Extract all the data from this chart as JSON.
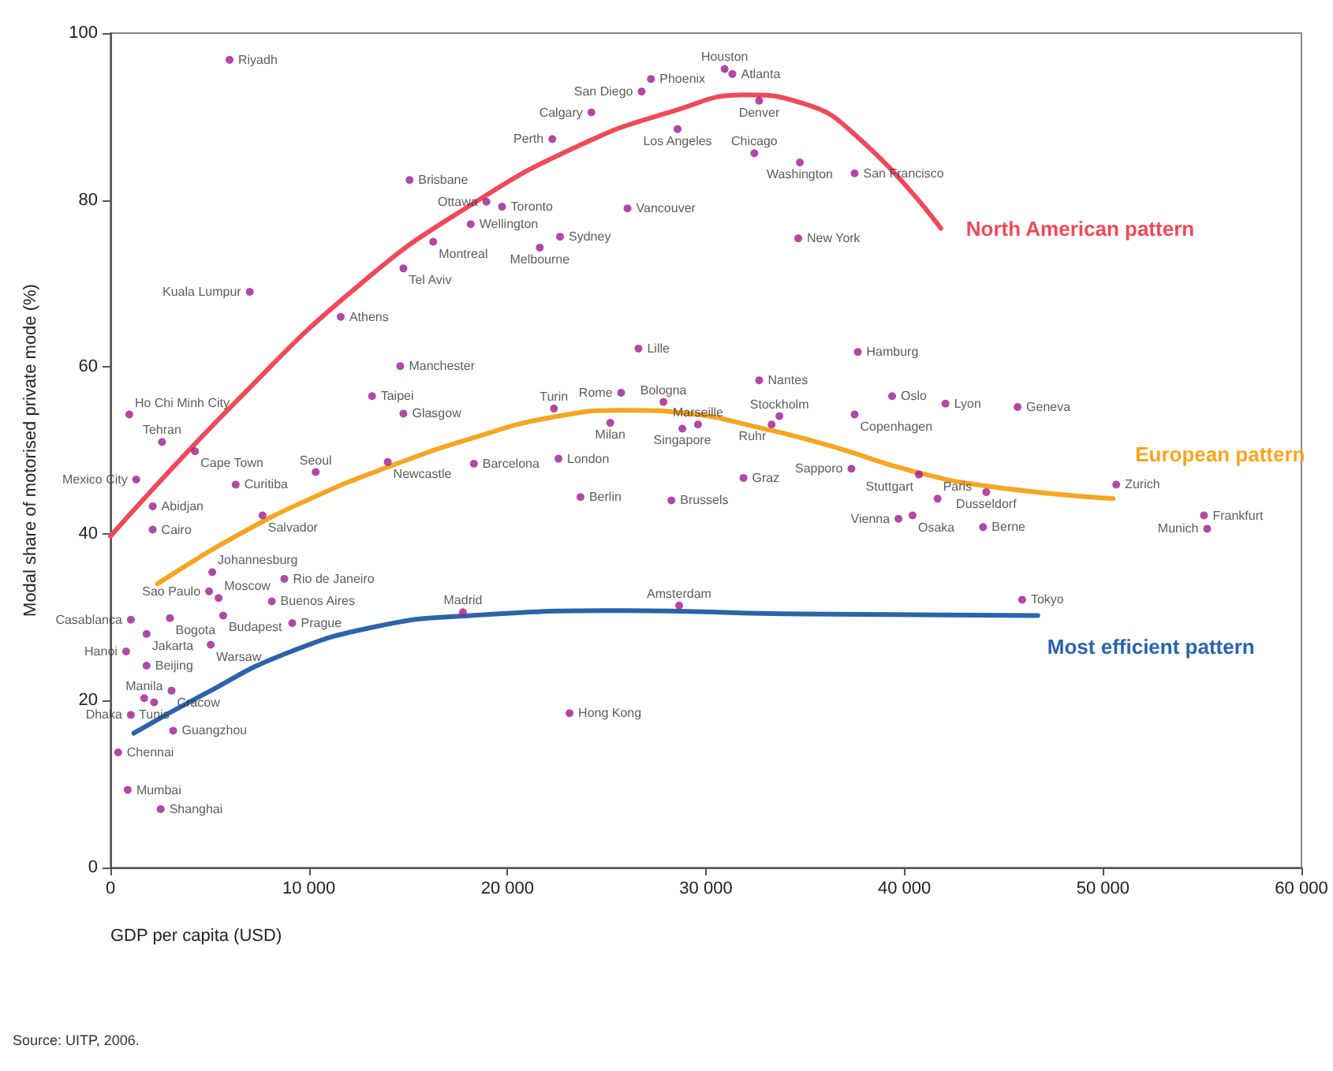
{
  "chart_data": {
    "type": "scatter",
    "xlabel": "GDP per capita (USD)",
    "ylabel": "Modal share of motorised private mode (%)",
    "xlim": [
      0,
      60000
    ],
    "xticks": [
      0,
      {
        "value": 10000,
        "label": "10 000"
      },
      {
        "value": 20000,
        "label": "20 000"
      },
      {
        "value": 30000,
        "label": "30 000"
      },
      {
        "value": 40000,
        "label": "40 000"
      },
      {
        "value": 50000,
        "label": "50 000"
      },
      {
        "value": 60000,
        "label": "60 000"
      }
    ],
    "ylim": [
      0,
      100
    ],
    "yticks": [
      0,
      20,
      40,
      60,
      80,
      100
    ],
    "annotations": [
      "Source: UITP, 2006."
    ],
    "series": [
      {
        "color": "#9b1c8c",
        "marker": "circle",
        "x": [
          6000,
          15070,
          18940,
          19730,
          18150,
          16260,
          14760,
          7020,
          11600,
          14600,
          13180,
          14760,
          950,
          2600,
          4260,
          1300,
          2130,
          2130,
          6310,
          10340,
          13970,
          18310,
          7660,
          5130,
          8760,
          4970,
          5450,
          8130,
          1030,
          3000,
          5680,
          9160,
          1820,
          790,
          5050,
          1820,
          1700,
          3080,
          2200,
          1030,
          3160,
          390,
          870,
          2530,
          17760,
          23130,
          28650,
          45930,
          50670,
          55090,
          55250,
          45700,
          44120,
          43960,
          42070,
          39380,
          37490,
          37650,
          33700,
          33310,
          32680,
          37330,
          40730,
          39700,
          40410,
          41670,
          31890,
          28260,
          23680,
          22570,
          26600,
          25730,
          22340,
          25180,
          27860,
          28810,
          29600,
          27230,
          26760,
          30940,
          31330,
          32680,
          24230,
          22260,
          28570,
          32440,
          34730,
          37490,
          26050,
          22650,
          21630,
          34650
        ],
        "values": [
          96.8,
          82.4,
          79.8,
          79.2,
          77.1,
          75.0,
          71.8,
          69.0,
          66.0,
          60.1,
          56.5,
          54.4,
          54.3,
          51.0,
          49.9,
          46.5,
          43.3,
          40.5,
          45.9,
          47.4,
          48.6,
          48.4,
          42.2,
          35.4,
          34.6,
          33.1,
          32.3,
          31.9,
          29.7,
          29.9,
          30.2,
          29.3,
          28.0,
          25.9,
          26.7,
          24.2,
          20.3,
          21.2,
          19.8,
          18.3,
          16.4,
          13.8,
          9.3,
          7.0,
          30.6,
          18.5,
          31.4,
          32.1,
          45.9,
          42.2,
          40.6,
          55.2,
          45.0,
          40.8,
          55.6,
          56.5,
          54.3,
          61.8,
          54.1,
          53.1,
          58.4,
          47.8,
          47.1,
          41.8,
          42.2,
          44.2,
          46.7,
          44.0,
          44.4,
          49.0,
          62.2,
          56.9,
          55.0,
          53.3,
          55.8,
          52.6,
          53.1,
          94.5,
          93.0,
          95.7,
          95.1,
          91.9,
          90.5,
          87.3,
          88.5,
          85.6,
          84.5,
          83.2,
          79.0,
          75.6,
          74.3,
          75.4
        ],
        "value_labels": [
          "Riyadh",
          "Brisbane",
          "Ottawa",
          "Toronto",
          "Wellington",
          "Montreal",
          "Tel Aviv",
          "Kuala Lumpur",
          "Athens",
          "Manchester",
          "Taipei",
          "Glasgow",
          "Ho Chi Minh City",
          "Tehran",
          "Cape Town",
          "Mexico City",
          "Abidjan",
          "Cairo",
          "Curitiba",
          "Seoul",
          "Newcastle",
          "Barcelona",
          "Salvador",
          "Johannesburg",
          "Rio de Janeiro",
          "Sao Paulo",
          "Moscow",
          "Buenos Aires",
          "Casablanca",
          "Bogota",
          "Budapest",
          "Prague",
          "Jakarta",
          "Hanoi",
          "Warsaw",
          "Beijing",
          "Manila",
          "Cracow",
          "Tunis",
          "Dhaka",
          "Guangzhou",
          "Chennai",
          "Mumbai",
          "Shanghai",
          "Madrid",
          "Hong Kong",
          "Amsterdam",
          "Tokyo",
          "Zurich",
          "Frankfurt",
          "Munich",
          "Geneva",
          "Dusseldorf",
          "Berne",
          "Lyon",
          "Oslo",
          "Copenhagen",
          "Hamburg",
          "Stockholm",
          "Ruhr",
          "Nantes",
          "Sapporo",
          "Stuttgart",
          "Vienna",
          "Osaka",
          "Paris",
          "Graz",
          "Brussels",
          "Berlin",
          "London",
          "Lille",
          "Rome",
          "Turin",
          "Milan",
          "Bologna",
          "Singapore",
          "Marseille",
          "Phoenix",
          "San Diego",
          "Houston",
          "Atlanta",
          "Denver",
          "Calgary",
          "Perth",
          "Los Angeles",
          "Chicago",
          "Washington",
          "San Francisco",
          "Vancouver",
          "Sydney",
          "Melbourne",
          "New York"
        ]
      },
      {
        "type": "line",
        "name": "North American pattern",
        "color": "#ee4a5a",
        "x": [
          0,
          6310,
          12630,
          18150,
          23680,
          28410,
          31970,
          34730,
          37890,
          41830
        ],
        "values": [
          39.7,
          55.8,
          70.0,
          79.4,
          86.6,
          90.7,
          92.6,
          91.7,
          87.0,
          76.6
        ]
      },
      {
        "type": "line",
        "name": "European pattern",
        "color": "#f5a623",
        "x": [
          2370,
          6310,
          10260,
          14210,
          18150,
          22100,
          26050,
          29200,
          32360,
          36310,
          40250,
          44200,
          50510
        ],
        "values": [
          34.0,
          39.7,
          44.4,
          48.2,
          51.4,
          53.9,
          54.8,
          54.4,
          52.9,
          50.5,
          47.6,
          45.7,
          44.2
        ]
      },
      {
        "type": "line",
        "name": "Most efficient pattern",
        "color": "#2c64a8",
        "x": [
          1180,
          4740,
          8680,
          13420,
          18150,
          26050,
          33940,
          46720
        ],
        "values": [
          16.1,
          20.8,
          25.5,
          28.9,
          30.2,
          30.8,
          30.4,
          30.2
        ]
      }
    ]
  }
}
